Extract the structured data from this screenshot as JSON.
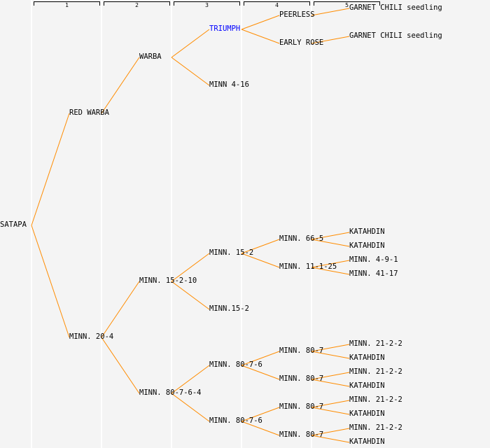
{
  "column_headers": [
    "1",
    "2",
    "3",
    "4",
    "5"
  ],
  "colors": {
    "line": "#ff8c00",
    "text": "#000000",
    "highlight": "#0000ff",
    "background": "#f4f4f4"
  },
  "tree": {
    "label": "SATAPA",
    "children": [
      {
        "label": "RED WARBA",
        "children": [
          {
            "label": "WARBA",
            "children": [
              {
                "label": "TRIUMPH",
                "highlight": true,
                "children": [
                  {
                    "label": "PEERLESS",
                    "children": [
                      {
                        "label": "GARNET CHILI seedling"
                      }
                    ]
                  },
                  {
                    "label": "EARLY ROSE",
                    "children": [
                      {
                        "label": "GARNET CHILI seedling"
                      }
                    ]
                  }
                ]
              },
              {
                "label": "MINN 4-16"
              }
            ]
          }
        ]
      },
      {
        "label": "MINN. 20-4",
        "children": [
          {
            "label": "MINN. 15-2-10",
            "children": [
              {
                "label": "MINN. 15-2",
                "children": [
                  {
                    "label": "MINN. 66-5",
                    "children": [
                      {
                        "label": "KATAHDIN"
                      },
                      {
                        "label": "KATAHDIN"
                      }
                    ]
                  },
                  {
                    "label": "MINN. 11-1-25",
                    "children": [
                      {
                        "label": "MINN. 4-9-1"
                      },
                      {
                        "label": "MINN. 41-17"
                      }
                    ]
                  }
                ]
              },
              {
                "label": "MINN.15-2"
              }
            ]
          },
          {
            "label": "MINN. 80-7-6-4",
            "children": [
              {
                "label": "MINN. 80-7-6",
                "children": [
                  {
                    "label": "MINN. 80-7",
                    "children": [
                      {
                        "label": "MINN. 21-2-2"
                      },
                      {
                        "label": "KATAHDIN"
                      }
                    ]
                  },
                  {
                    "label": "MINN. 80-7",
                    "children": [
                      {
                        "label": "MINN. 21-2-2"
                      },
                      {
                        "label": "KATAHDIN"
                      }
                    ]
                  }
                ]
              },
              {
                "label": "MINN. 80-7-6",
                "children": [
                  {
                    "label": "MINN. 80-7",
                    "children": [
                      {
                        "label": "MINN. 21-2-2"
                      },
                      {
                        "label": "KATAHDIN"
                      }
                    ]
                  },
                  {
                    "label": "MINN. 80-7",
                    "children": [
                      {
                        "label": "MINN. 21-2-2"
                      },
                      {
                        "label": "KATAHDIN"
                      }
                    ]
                  }
                ]
              }
            ]
          }
        ]
      }
    ]
  }
}
